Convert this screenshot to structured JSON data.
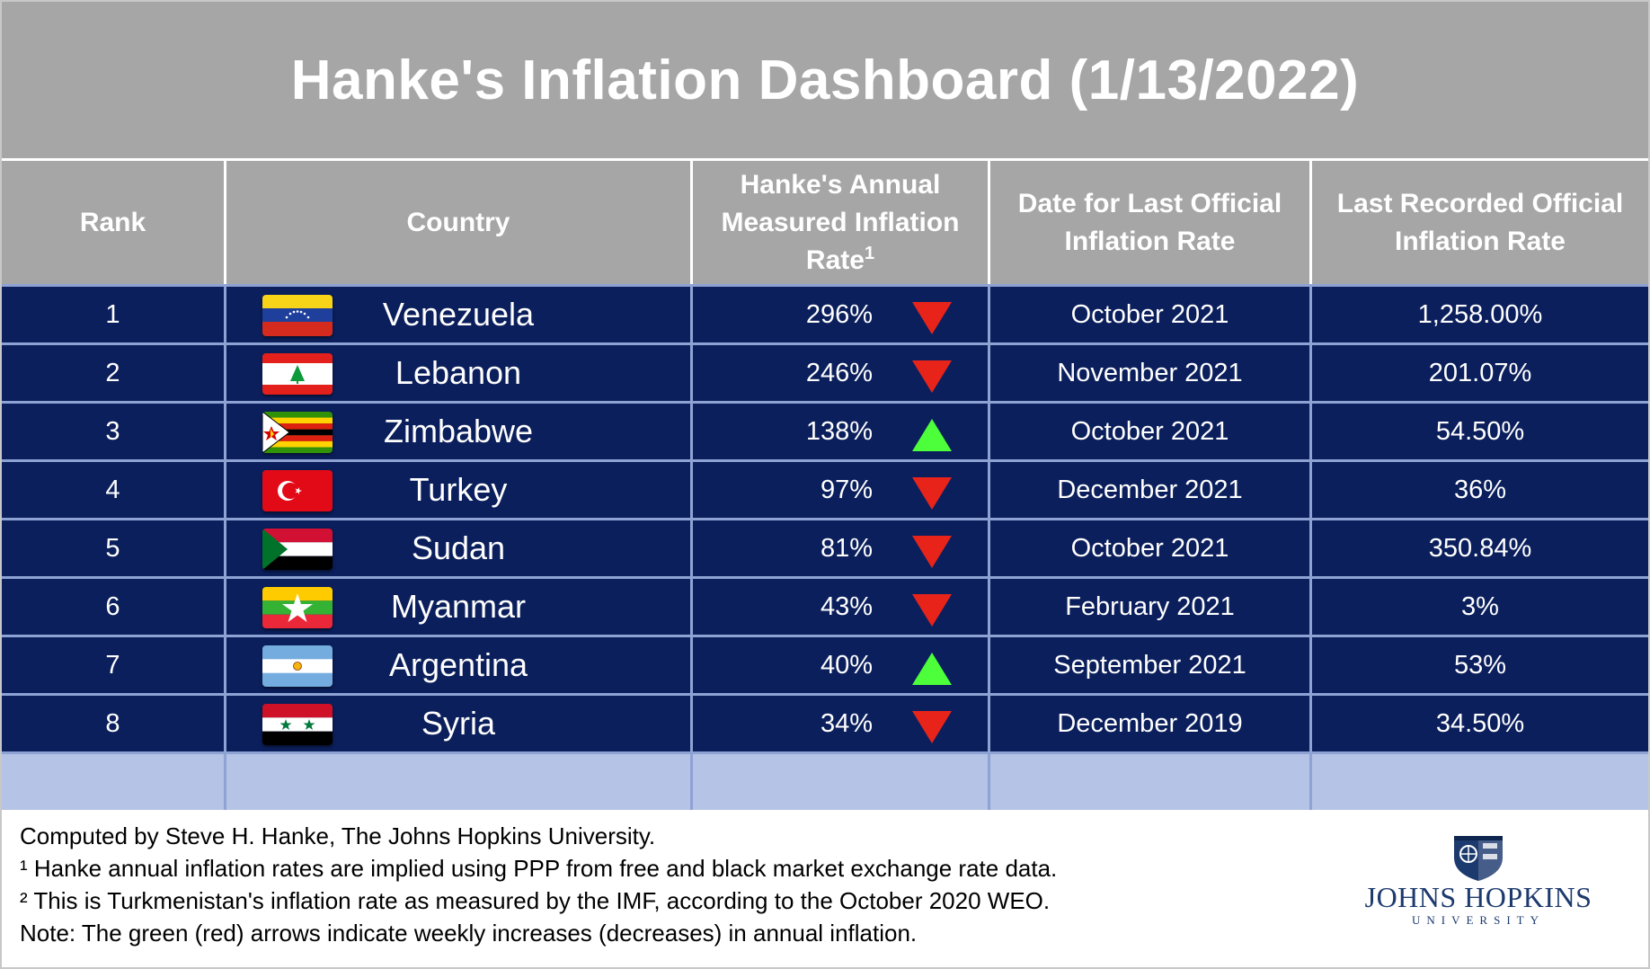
{
  "title": "Hanke's Inflation Dashboard (1/13/2022)",
  "headers": {
    "rank": "Rank",
    "country": "Country",
    "hanke_line1": "Hanke's Annual",
    "hanke_line2": "Measured Inflation",
    "hanke_line3": "Rate",
    "hanke_sup": "1",
    "date_line1": "Date for Last Official",
    "date_line2": "Inflation Rate",
    "official_line1": "Last Recorded Official",
    "official_line2": "Inflation Rate"
  },
  "chart_data": {
    "type": "table",
    "title": "Hanke's Inflation Dashboard (1/13/2022)",
    "columns": [
      "Rank",
      "Country",
      "Hanke's Annual Measured Inflation Rate",
      "Date for Last Official Inflation Rate",
      "Last Recorded Official Inflation Rate"
    ],
    "rows": [
      {
        "rank": "1",
        "country": "Venezuela",
        "hanke": "296%",
        "trend": "down",
        "date": "October 2021",
        "official": "1,258.00%",
        "flag": "venezuela"
      },
      {
        "rank": "2",
        "country": "Lebanon",
        "hanke": "246%",
        "trend": "down",
        "date": "November 2021",
        "official": "201.07%",
        "flag": "lebanon"
      },
      {
        "rank": "3",
        "country": "Zimbabwe",
        "hanke": "138%",
        "trend": "up",
        "date": "October 2021",
        "official": "54.50%",
        "flag": "zimbabwe"
      },
      {
        "rank": "4",
        "country": "Turkey",
        "hanke": "97%",
        "trend": "down",
        "date": "December 2021",
        "official": "36%",
        "flag": "turkey"
      },
      {
        "rank": "5",
        "country": "Sudan",
        "hanke": "81%",
        "trend": "down",
        "date": "October 2021",
        "official": "350.84%",
        "flag": "sudan"
      },
      {
        "rank": "6",
        "country": "Myanmar",
        "hanke": "43%",
        "trend": "down",
        "date": "February 2021",
        "official": "3%",
        "flag": "myanmar"
      },
      {
        "rank": "7",
        "country": "Argentina",
        "hanke": "40%",
        "trend": "up",
        "date": "September 2021",
        "official": "53%",
        "flag": "argentina"
      },
      {
        "rank": "8",
        "country": "Syria",
        "hanke": "34%",
        "trend": "down",
        "date": "December 2019",
        "official": "34.50%",
        "flag": "syria"
      }
    ]
  },
  "colors": {
    "header_gray": "#a6a6a6",
    "row_navy": "#0b1f5c",
    "blank_row": "#b4c3e6",
    "arrow_up_green": "#4cff3a",
    "arrow_down_red": "#e8241a"
  },
  "footnotes": {
    "line1": "Computed by Steve H. Hanke, The Johns Hopkins University.",
    "line2": "¹ Hanke annual inflation rates are implied using PPP from free and black market exchange rate data.",
    "line3": "² This is Turkmenistan's inflation rate as measured by the IMF, according to the October 2020 WEO.",
    "line4": "Note: The green (red) arrows indicate weekly increases (decreases) in annual inflation."
  },
  "logo": {
    "name": "JOHNS HOPKINS",
    "sub": "UNIVERSITY",
    "icon": "jhu-shield-icon"
  }
}
